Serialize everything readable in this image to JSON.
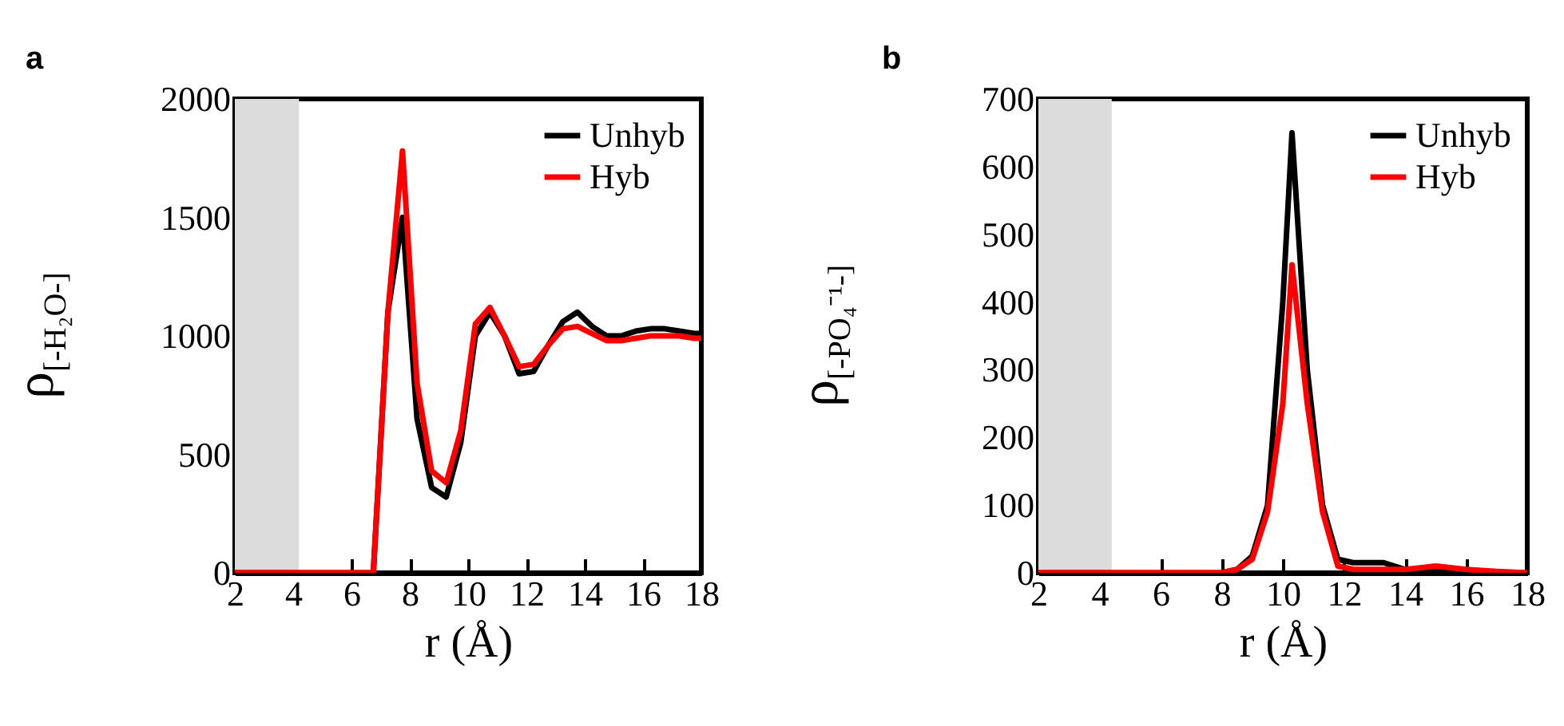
{
  "chart_data": [
    {
      "type": "line",
      "title": "a",
      "xlabel": "r (Å)",
      "ylabel": "ρ$_{[-H₂O-]}$",
      "xlim": [
        2,
        18
      ],
      "xticks": [
        2,
        4,
        6,
        8,
        10,
        12,
        14,
        16,
        18
      ],
      "ylim": [
        0,
        2000
      ],
      "yticks": [
        0,
        500,
        1000,
        1500,
        2000
      ],
      "grid": false,
      "legend": "top right",
      "line_style": "solid",
      "marker": "none",
      "x": [
        2,
        6.75,
        7.25,
        7.75,
        8.25,
        8.75,
        9.25,
        9.75,
        10.25,
        10.75,
        11.25,
        11.75,
        12.25,
        12.75,
        13.25,
        13.75,
        14.25,
        14.75,
        15.25,
        15.75,
        16.25,
        16.75,
        17.25,
        17.75,
        18
      ],
      "bands": [
        {
          "axis": "x",
          "from": 2,
          "to": 4.2,
          "color": "#dcdcdc"
        }
      ],
      "series": [
        {
          "name": "Unhyb",
          "color": "#000000",
          "values": [
            0,
            0,
            1100,
            1500,
            650,
            360,
            320,
            550,
            1000,
            1100,
            1000,
            840,
            850,
            960,
            1060,
            1100,
            1040,
            1000,
            1000,
            1020,
            1030,
            1030,
            1020,
            1010,
            1010
          ]
        },
        {
          "name": "Hyb",
          "color": "#ff0000",
          "values": [
            0,
            0,
            1100,
            1780,
            800,
            430,
            380,
            600,
            1050,
            1120,
            1000,
            870,
            880,
            960,
            1030,
            1040,
            1010,
            980,
            980,
            990,
            1000,
            1000,
            1000,
            990,
            990
          ]
        }
      ]
    },
    {
      "type": "line",
      "title": "b",
      "xlabel": "r (Å)",
      "ylabel": "ρ$_{[-PO₄⁻¹-]}$",
      "xlim": [
        2,
        18
      ],
      "xticks": [
        2,
        4,
        6,
        8,
        10,
        12,
        14,
        16,
        18
      ],
      "ylim": [
        0,
        700
      ],
      "yticks": [
        0,
        100,
        200,
        300,
        400,
        500,
        600,
        700
      ],
      "grid": false,
      "legend": "top right",
      "line_style": "solid",
      "marker": "none",
      "x": [
        2,
        8,
        8.5,
        9,
        9.5,
        10,
        10.3,
        10.8,
        11.3,
        11.8,
        12.3,
        13.3,
        14,
        15,
        16,
        17,
        18
      ],
      "bands": [
        {
          "axis": "x",
          "from": 2,
          "to": 4.4,
          "color": "#dcdcdc"
        }
      ],
      "series": [
        {
          "name": "Unhyb",
          "color": "#000000",
          "values": [
            0,
            0,
            5,
            25,
            100,
            400,
            650,
            300,
            100,
            20,
            15,
            15,
            5,
            3,
            2,
            0,
            0
          ]
        },
        {
          "name": "Hyb",
          "color": "#ff0000",
          "values": [
            0,
            0,
            5,
            20,
            90,
            250,
            455,
            250,
            90,
            10,
            5,
            5,
            5,
            10,
            5,
            2,
            0
          ]
        }
      ]
    }
  ]
}
